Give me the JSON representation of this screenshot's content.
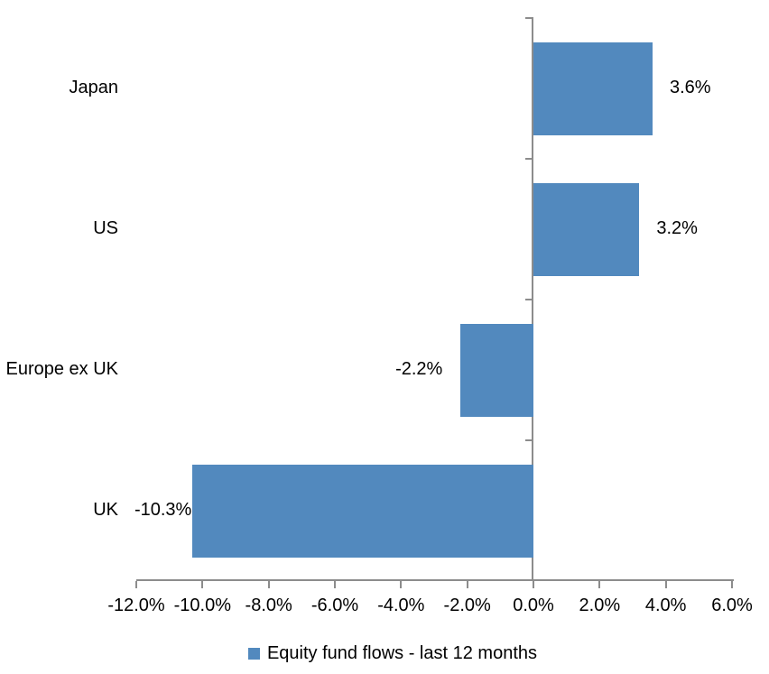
{
  "chart_data": {
    "type": "bar",
    "orientation": "horizontal",
    "title": "",
    "categories": [
      "Japan",
      "US",
      "Europe ex UK",
      "UK"
    ],
    "series": [
      {
        "name": "Equity fund flows - last 12 months",
        "values": [
          3.6,
          3.2,
          -2.2,
          -10.3
        ],
        "data_labels": [
          "3.6%",
          "3.2%",
          "-2.2%",
          "-10.3%"
        ]
      }
    ],
    "xlabel": "",
    "ylabel": "",
    "xlim": [
      -12,
      6
    ],
    "x_tick_step": 2,
    "x_tick_labels": [
      "-12.0%",
      "-10.0%",
      "-8.0%",
      "-6.0%",
      "-4.0%",
      "-2.0%",
      "0.0%",
      "2.0%",
      "4.0%",
      "6.0%"
    ],
    "grid": false,
    "legend": {
      "position": "bottom",
      "label": "Equity fund flows - last 12 months"
    },
    "colors": {
      "bar": "#5289BE",
      "axis": "#8C8C8C",
      "text": "#000000",
      "background": "#FFFFFF"
    }
  }
}
